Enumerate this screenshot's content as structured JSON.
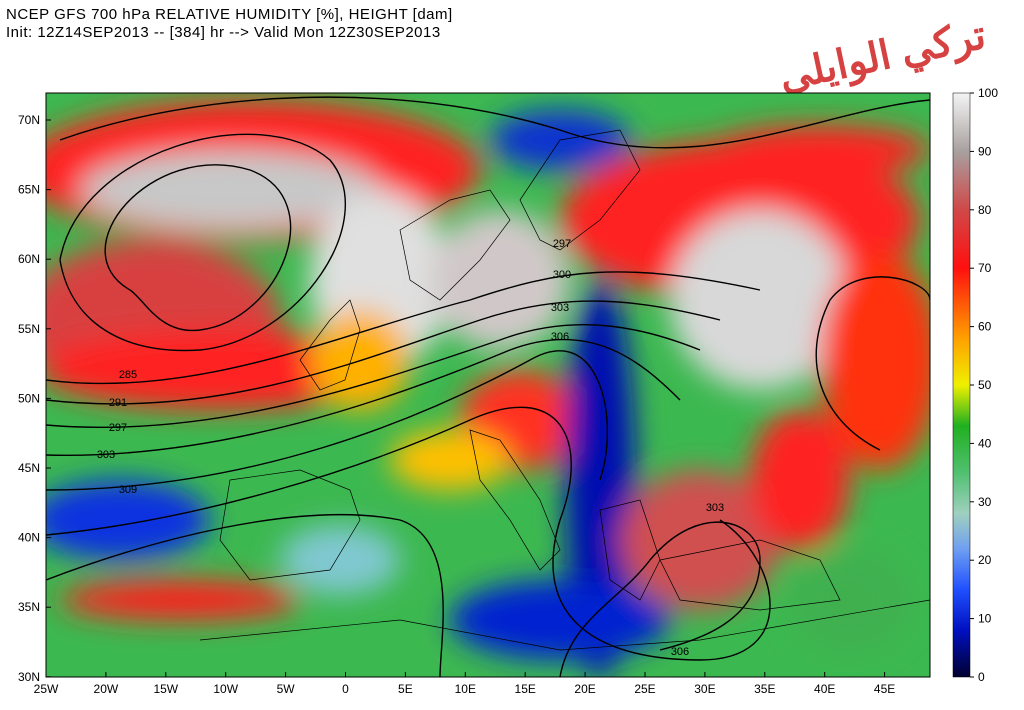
{
  "header": {
    "title": "NCEP GFS 700 hPa RELATIVE HUMIDITY [%], HEIGHT [dam]",
    "subtitle": "Init: 12Z14SEP2013 -- [384] hr --> Valid Mon 12Z30SEP2013"
  },
  "watermark": "تركي الوايلي",
  "longitude_labels": [
    "25W",
    "20W",
    "15W",
    "10W",
    "5W",
    "0",
    "5E",
    "10E",
    "15E",
    "20E",
    "25E",
    "30E",
    "35E",
    "40E",
    "45E"
  ],
  "latitude_labels": [
    "70N",
    "65N",
    "60N",
    "55N",
    "50N",
    "45N",
    "40N",
    "35N",
    "30N"
  ],
  "colorbar": {
    "lim": [
      0,
      100
    ],
    "ticks": [
      0,
      10,
      20,
      30,
      40,
      50,
      60,
      70,
      80,
      90,
      100
    ]
  },
  "contour_labels": [
    "285",
    "291",
    "297",
    "303",
    "309",
    "297",
    "300",
    "303",
    "306",
    "303",
    "306"
  ]
}
